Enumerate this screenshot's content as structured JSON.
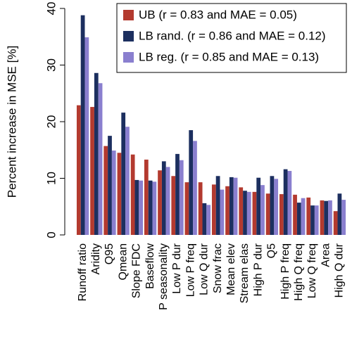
{
  "chart_data": {
    "type": "bar",
    "y_label": "Percent increase in MSE [%]",
    "categories": [
      "Runoff ratio",
      "Aridity",
      "Q95",
      "Qmean",
      "Slope FDC",
      "Baseflow",
      "P seasonality",
      "Low P dur",
      "Low P freq",
      "Low Q dur",
      "Snow frac",
      "Mean elev",
      "Stream elas",
      "High P dur",
      "Q5",
      "High P freq",
      "High Q freq",
      "Low Q freq",
      "Area",
      "High Q dur"
    ],
    "series": [
      {
        "name": "UB (r = 0.83 and MAE = 0.05)",
        "color": "#b33a2f",
        "values": [
          22.9,
          22.6,
          15.7,
          14.5,
          14.2,
          13.3,
          11.4,
          10.4,
          9.3,
          9.3,
          8.9,
          8.6,
          8.4,
          7.6,
          7.3,
          7.2,
          7.1,
          6.6,
          6.1,
          4.2
        ]
      },
      {
        "name": "LB rand. (r = 0.86 and MAE = 0.12)",
        "color": "#1c2f5f",
        "values": [
          38.8,
          28.6,
          17.5,
          21.6,
          9.7,
          9.6,
          13.0,
          14.3,
          18.5,
          5.6,
          10.4,
          10.2,
          7.8,
          10.1,
          10.4,
          11.6,
          5.7,
          5.2,
          6.0,
          7.3
        ]
      },
      {
        "name": "LB reg. (r = 0.85 and MAE = 0.13)",
        "color": "#8a7fcf",
        "values": [
          34.9,
          26.8,
          14.9,
          19.1,
          9.6,
          9.4,
          12.0,
          13.2,
          16.6,
          5.3,
          8.0,
          10.1,
          7.6,
          8.8,
          9.9,
          11.3,
          6.5,
          5.2,
          6.1,
          6.2
        ]
      }
    ],
    "ylim": [
      0,
      40
    ],
    "yticks": [
      0,
      10,
      20,
      30,
      40
    ],
    "legend": "top-right"
  }
}
